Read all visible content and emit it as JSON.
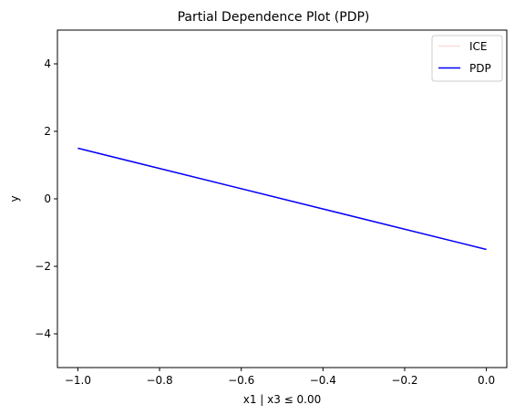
{
  "chart_data": {
    "type": "line",
    "title": "Partial Dependence Plot (PDP)",
    "xlabel": "x1 | x3 ≤ 0.00",
    "ylabel": "y",
    "xlim": [
      -1.05,
      0.05
    ],
    "ylim": [
      -5,
      5
    ],
    "x_ticks": [
      -1.0,
      -0.8,
      -0.6,
      -0.4,
      -0.2,
      0.0
    ],
    "x_tick_labels": [
      "−1.0",
      "−0.8",
      "−0.6",
      "−0.4",
      "−0.2",
      "0.0"
    ],
    "y_ticks": [
      -4,
      -2,
      0,
      2,
      4
    ],
    "y_tick_labels": [
      "−4",
      "−2",
      "0",
      "2",
      "4"
    ],
    "grid": false,
    "legend_position": "top-right",
    "series": [
      {
        "name": "ICE",
        "color": "#ff0000",
        "opacity": 0.15,
        "x": [
          -1.0,
          0.0
        ],
        "y": [
          1.5,
          -1.5
        ]
      },
      {
        "name": "PDP",
        "color": "#0000ff",
        "opacity": 1.0,
        "x": [
          -1.0,
          0.0
        ],
        "y": [
          1.5,
          -1.5
        ]
      }
    ]
  }
}
